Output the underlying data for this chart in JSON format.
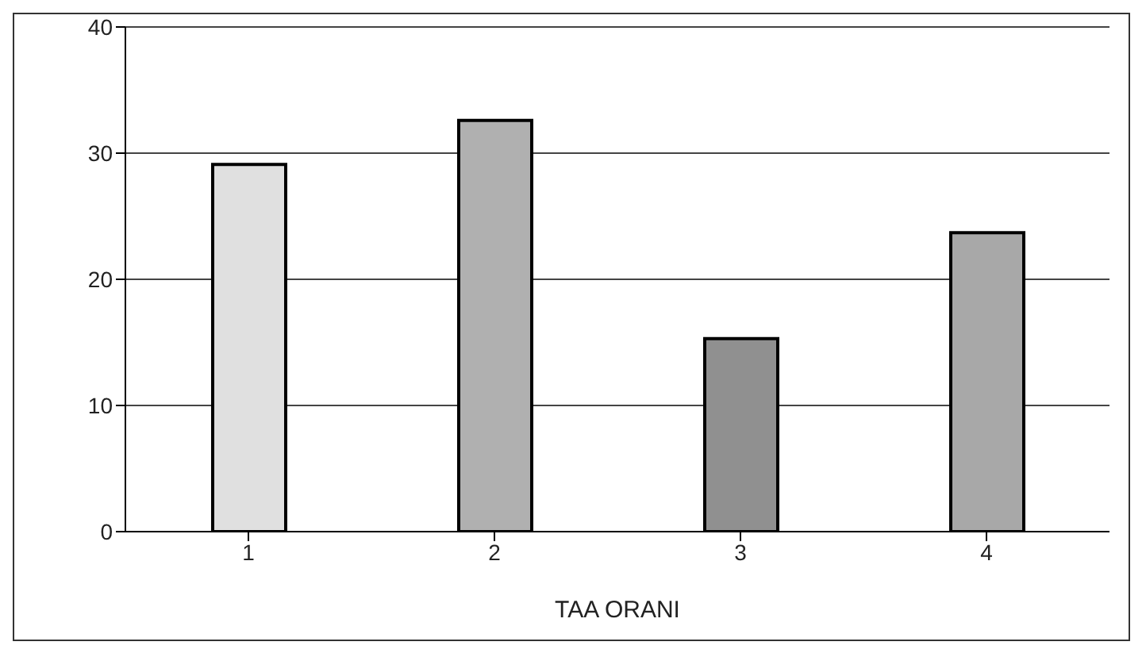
{
  "chart_data": {
    "type": "bar",
    "xlabel": "TAA ORANI",
    "categories": [
      "1",
      "2",
      "3",
      "4"
    ],
    "values": [
      29.1,
      32.6,
      15.3,
      23.7
    ],
    "colors": [
      "#e0e0e0",
      "#b0b0b0",
      "#909090",
      "#a8a8a8"
    ],
    "ylim": [
      0,
      40
    ],
    "yticks": [
      0,
      10,
      20,
      30,
      40
    ],
    "grid": "y"
  }
}
